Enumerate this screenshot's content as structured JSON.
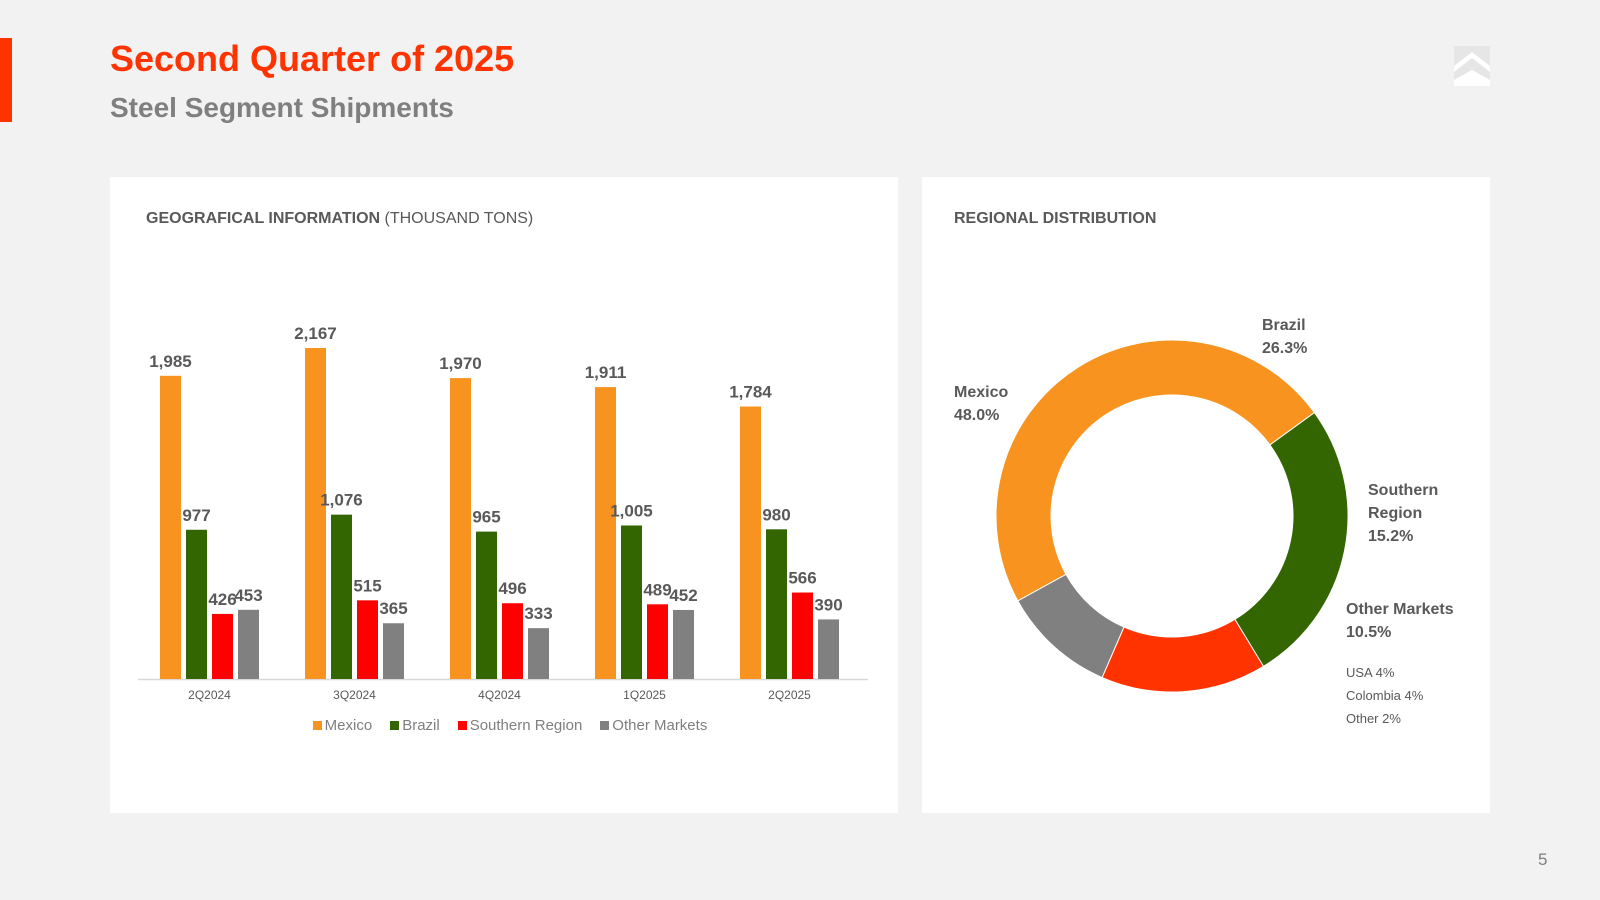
{
  "header": {
    "title": "Second Quarter of 2025",
    "subtitle": "Steel Segment Shipments"
  },
  "page_number": "5",
  "colors": {
    "accent": "#ff3300",
    "mexico": "#f7931e",
    "brazil": "#336600",
    "southern_region": "#ff0000",
    "southern_region_donut": "#ff3300",
    "other_markets": "#808080"
  },
  "icons": {
    "logo": "company-logo-icon"
  },
  "left_panel": {
    "title_strong": "GEOGRAFICAL INFORMATION",
    "title_rest": " (THOUSAND TONS)"
  },
  "right_panel": {
    "title": "REGIONAL DISTRIBUTION",
    "other_markets_breakdown": [
      "USA 4%",
      "Colombia 4%",
      "Other 2%"
    ]
  },
  "chart_data": [
    {
      "type": "bar",
      "categories": [
        "2Q2024",
        "3Q2024",
        "4Q2024",
        "1Q2025",
        "2Q2025"
      ],
      "series": [
        {
          "name": "Mexico",
          "values": [
            1985,
            2167,
            1970,
            1911,
            1784
          ],
          "labels": [
            "1,985",
            "2,167",
            "1,970",
            "1,911",
            "1,784"
          ]
        },
        {
          "name": "Brazil",
          "values": [
            977,
            1076,
            965,
            1005,
            980
          ],
          "labels": [
            "977",
            "1,076",
            "965",
            "1,005",
            "980"
          ]
        },
        {
          "name": "Southern Region",
          "values": [
            426,
            515,
            496,
            489,
            566
          ],
          "labels": [
            "426",
            "515",
            "496",
            "489",
            "566"
          ]
        },
        {
          "name": "Other Markets",
          "values": [
            453,
            365,
            333,
            452,
            390
          ],
          "labels": [
            "453",
            "365",
            "333",
            "452",
            "390"
          ]
        }
      ],
      "title": "GEOGRAFICAL INFORMATION (THOUSAND TONS)",
      "ylim": [
        0,
        2167
      ],
      "grid": false,
      "legend": "bottom"
    },
    {
      "type": "pie",
      "donut": true,
      "slices": [
        {
          "name": "Brazil",
          "value": 26.3,
          "label": "26.3%"
        },
        {
          "name": "Southern Region",
          "value": 15.2,
          "label": "15.2%",
          "label_lines": [
            "Southern",
            "Region"
          ]
        },
        {
          "name": "Other Markets",
          "value": 10.5,
          "label": "10.5%"
        },
        {
          "name": "Mexico",
          "value": 48.0,
          "label": "48.0%"
        }
      ],
      "title": "REGIONAL DISTRIBUTION",
      "legend": "none"
    }
  ]
}
